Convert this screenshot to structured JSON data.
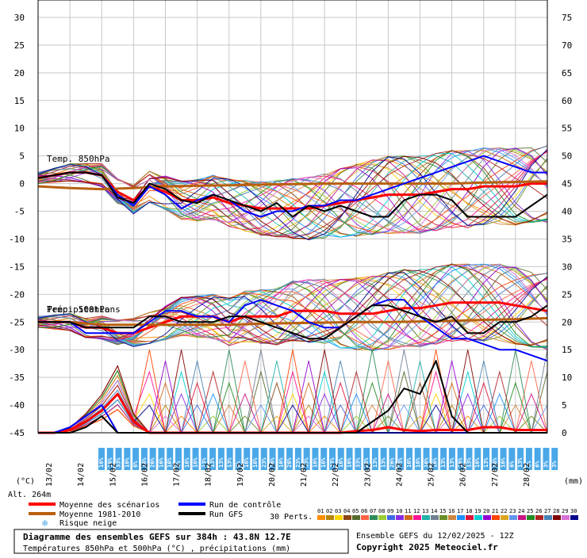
{
  "chart_data": {
    "type": "line",
    "title": "Diagramme des ensembles GEFS sur 384h : 43.8N 12.7E",
    "subtitle": "Températures 850hPa et 500hPa (°C) , précipitations (mm)",
    "run_info": "Ensemble GEFS du 12/02/2025 - 12Z",
    "copyright": "Copyright 2025 Meteociel.fr",
    "altitude_label": "Alt. 264m",
    "left_unit": "(°C)",
    "right_unit": "(mm)",
    "left_ticks": [
      30,
      25,
      20,
      15,
      10,
      5,
      0,
      -5,
      -10,
      -15,
      -20,
      -25,
      -30,
      -35,
      -40,
      -45
    ],
    "right_ticks": [
      75,
      70,
      65,
      60,
      55,
      50,
      45,
      40,
      35,
      30,
      25,
      20,
      15,
      10,
      5,
      0
    ],
    "ylim_temp": [
      -45,
      30
    ],
    "ylim_precip_mm": [
      0,
      75
    ],
    "x_dates": [
      "13/02",
      "14/02",
      "15/02",
      "16/02",
      "17/02",
      "18/02",
      "19/02",
      "20/02",
      "21/02",
      "22/02",
      "23/02",
      "24/02",
      "25/02",
      "26/02",
      "27/02",
      "28/02"
    ],
    "x_range_days": [
      0,
      16
    ],
    "panel_labels": {
      "t850": "Temp. 850hPa",
      "t500": "Temp. 500hPa",
      "precip": "Précipitations"
    },
    "legend": {
      "mean": "Moyenne des scénarios",
      "clim": "Moyenne 1981-2010",
      "snow": "Risque neige",
      "control": "Run de contrôle",
      "gfs": "Run GFS",
      "perts_label": "30 Perts."
    },
    "member_labels": [
      "01",
      "02",
      "03",
      "04",
      "05",
      "06",
      "07",
      "08",
      "09",
      "10",
      "11",
      "12",
      "13",
      "14",
      "15",
      "16",
      "17",
      "18",
      "19",
      "20",
      "21",
      "22",
      "23",
      "24",
      "25",
      "26",
      "27",
      "28",
      "29",
      "30"
    ],
    "member_colors": [
      "#ff8c00",
      "#b8860b",
      "#ffd700",
      "#8b4513",
      "#556b2f",
      "#ff6347",
      "#2e8b57",
      "#9acd32",
      "#4169e1",
      "#8a2be2",
      "#d2691e",
      "#ff1493",
      "#20b2aa",
      "#708090",
      "#6b8e23",
      "#cd853f",
      "#1e90ff",
      "#dc143c",
      "#00ced1",
      "#9400d3",
      "#ff4500",
      "#daa520",
      "#6495ed",
      "#c71585",
      "#228b22",
      "#b22222",
      "#4682b4",
      "#800000",
      "#da70d6",
      "#00008b"
    ],
    "colors": {
      "mean": "#ff0000",
      "clim": "#b8600f",
      "control": "#0000ff",
      "gfs": "#000000",
      "snow": "#4aa8e8"
    },
    "snow_risk_labels": [
      "16%",
      "16%",
      "33%",
      "16%",
      "6%",
      "16%",
      "26%",
      "16%",
      "16%",
      "6%",
      "16%",
      "16%",
      "13%",
      "13%",
      "13%",
      "13%",
      "6%",
      "16%",
      "16%",
      "23%",
      "16%",
      "16%",
      "26%",
      "23%",
      "33%",
      "16%",
      "16%",
      "23%",
      "16%",
      "16%",
      "33%",
      "26%",
      "13%",
      "13%",
      "26%",
      "33%",
      "16%",
      "16%",
      "16%",
      "16%",
      "13%",
      "13%",
      "16%",
      "13%",
      "16%",
      "13%",
      "16%",
      "16%",
      "6%",
      "13%",
      "6%",
      "6%",
      "3%",
      "3%"
    ],
    "series": [
      {
        "name": "Moyenne des scénarios",
        "panel": "t850",
        "x": [
          0,
          0.5,
          1,
          1.5,
          2,
          2.5,
          3,
          3.5,
          4,
          4.5,
          5,
          5.5,
          6,
          6.5,
          7,
          7.5,
          8,
          8.5,
          9,
          9.5,
          10,
          10.5,
          11,
          11.5,
          12,
          12.5,
          13,
          13.5,
          14,
          14.5,
          15,
          15.5,
          16
        ],
        "values": [
          1,
          1.5,
          2,
          2,
          1.5,
          -1.5,
          -3,
          -0.5,
          -1.5,
          -3,
          -3,
          -2.5,
          -3.5,
          -4,
          -4.5,
          -4.5,
          -4.5,
          -4.5,
          -4,
          -3.5,
          -3,
          -2.5,
          -2,
          -2,
          -2,
          -1.5,
          -1,
          -1,
          -0.5,
          -0.5,
          -0.5,
          0,
          0
        ]
      },
      {
        "name": "Moyenne 1981-2010",
        "panel": "t850",
        "x": [
          0,
          1,
          2,
          3,
          4,
          5,
          6,
          7,
          8,
          9,
          10,
          11,
          12,
          13,
          14,
          15,
          16
        ],
        "values": [
          -0.5,
          -0.8,
          -1,
          -0.8,
          -0.5,
          -0.4,
          -0.3,
          -0.2,
          -0.1,
          0,
          0,
          0,
          0,
          0,
          0.2,
          0.3,
          0.4
        ]
      },
      {
        "name": "Run de contrôle",
        "panel": "t850",
        "x": [
          0,
          0.5,
          1,
          1.5,
          2,
          2.5,
          3,
          3.5,
          4,
          4.5,
          5,
          5.5,
          6,
          6.5,
          7,
          7.5,
          8,
          8.5,
          9,
          9.5,
          10,
          10.5,
          11,
          11.5,
          12,
          12.5,
          13,
          13.5,
          14,
          14.5,
          15,
          15.5,
          16
        ],
        "values": [
          1,
          1.5,
          2,
          2,
          1.5,
          -2,
          -4,
          -0.5,
          -2,
          -4.5,
          -3,
          -2,
          -3,
          -5,
          -6,
          -5,
          -5,
          -4,
          -4,
          -3,
          -3,
          -2,
          -1,
          0,
          1,
          2,
          3,
          4,
          5,
          4,
          3,
          2,
          2
        ]
      },
      {
        "name": "Run GFS",
        "panel": "t850",
        "x": [
          0,
          0.5,
          1,
          1.5,
          2,
          2.5,
          3,
          3.5,
          4,
          4.5,
          5,
          5.5,
          6,
          6.5,
          7,
          7.5,
          8,
          8.5,
          9,
          9.5,
          10,
          10.5,
          11,
          11.5,
          12,
          12.5,
          13,
          13.5,
          14,
          14.5,
          15,
          15.5,
          16
        ],
        "values": [
          1,
          1.5,
          2,
          2,
          1.5,
          -2.5,
          -3.5,
          0,
          -1,
          -3,
          -3.5,
          -2,
          -3,
          -4,
          -5,
          -3.5,
          -6,
          -4,
          -5,
          -4,
          -5,
          -6,
          -6,
          -3,
          -2,
          -2,
          -3,
          -6,
          -6,
          -6,
          -6,
          -4,
          -2
        ]
      },
      {
        "name": "Moyenne des scénarios",
        "panel": "t500",
        "x": [
          0,
          0.5,
          1,
          1.5,
          2,
          2.5,
          3,
          3.5,
          4,
          4.5,
          5,
          5.5,
          6,
          6.5,
          7,
          7.5,
          8,
          8.5,
          9,
          9.5,
          10,
          10.5,
          11,
          11.5,
          12,
          12.5,
          13,
          13.5,
          14,
          14.5,
          15,
          15.5,
          16
        ],
        "values": [
          -25,
          -25,
          -25,
          -26,
          -26,
          -27,
          -27,
          -26,
          -25,
          -24,
          -24,
          -24,
          -25,
          -24,
          -24,
          -24,
          -23,
          -23,
          -23,
          -23.5,
          -23.5,
          -23.5,
          -23,
          -22.5,
          -22.5,
          -22,
          -21.5,
          -21.5,
          -21.5,
          -21.5,
          -22,
          -22.5,
          -23
        ]
      },
      {
        "name": "Moyenne 1981-2010",
        "panel": "t500",
        "x": [
          0,
          1,
          2,
          3,
          4,
          5,
          6,
          7,
          8,
          9,
          10,
          11,
          12,
          13,
          14,
          15,
          16
        ],
        "values": [
          -25,
          -25,
          -25.5,
          -25.5,
          -25.5,
          -25.5,
          -25.5,
          -25.3,
          -25.2,
          -25.1,
          -25,
          -25,
          -24.9,
          -24.8,
          -24.6,
          -24.5,
          -24.3
        ]
      },
      {
        "name": "Run de contrôle",
        "panel": "t500",
        "x": [
          0,
          0.5,
          1,
          1.5,
          2,
          2.5,
          3,
          3.5,
          4,
          4.5,
          5,
          5.5,
          6,
          6.5,
          7,
          7.5,
          8,
          8.5,
          9,
          9.5,
          10,
          10.5,
          11,
          11.5,
          12,
          12.5,
          13,
          13.5,
          14,
          14.5,
          15,
          15.5,
          16
        ],
        "values": [
          -25,
          -25,
          -25,
          -27,
          -27,
          -27,
          -27,
          -25,
          -23,
          -23,
          -24,
          -24,
          -25,
          -22,
          -21,
          -22,
          -23,
          -25,
          -26,
          -26,
          -24,
          -22,
          -21,
          -21,
          -24,
          -26,
          -28,
          -28,
          -29,
          -30,
          -30,
          -31,
          -32
        ]
      },
      {
        "name": "Run GFS",
        "panel": "t500",
        "x": [
          0,
          0.5,
          1,
          1.5,
          2,
          2.5,
          3,
          3.5,
          4,
          4.5,
          5,
          5.5,
          6,
          6.5,
          7,
          7.5,
          8,
          8.5,
          9,
          9.5,
          10,
          10.5,
          11,
          11.5,
          12,
          12.5,
          13,
          13.5,
          14,
          14.5,
          15,
          15.5,
          16
        ],
        "values": [
          -25,
          -25,
          -25,
          -26,
          -26,
          -26,
          -26,
          -24,
          -24,
          -25,
          -25,
          -25,
          -24,
          -24,
          -25,
          -26,
          -27,
          -28,
          -28,
          -26,
          -24,
          -22,
          -22,
          -23,
          -24,
          -25,
          -24,
          -27,
          -27,
          -25,
          -25,
          -24,
          -22
        ]
      },
      {
        "name": "Moyenne des scénarios",
        "panel": "precip",
        "x": [
          0,
          0.5,
          1,
          1.5,
          2,
          2.5,
          3,
          3.5,
          4,
          4.5,
          5,
          5.5,
          6,
          6.5,
          7,
          7.5,
          8,
          8.5,
          9,
          9.5,
          10,
          10.5,
          11,
          11.5,
          12,
          12.5,
          13,
          13.5,
          14,
          14.5,
          15,
          15.5,
          16
        ],
        "values": [
          0,
          0,
          0.5,
          2,
          4,
          7,
          2,
          0,
          0,
          0,
          0,
          0,
          0,
          0,
          0,
          0,
          0,
          0,
          0,
          0,
          0.3,
          0.5,
          1,
          0.5,
          0.3,
          0.5,
          0.5,
          0.5,
          1,
          1,
          0.5,
          0.5,
          0.5
        ]
      },
      {
        "name": "Run de contrôle",
        "panel": "precip",
        "x": [
          0,
          0.5,
          1,
          1.5,
          2,
          2.5,
          3,
          3.5,
          4,
          4.5,
          5,
          5.5,
          6,
          6.5,
          7,
          7.5,
          8,
          8.5,
          9,
          9.5,
          10,
          10.5,
          11,
          11.5,
          12,
          12.5,
          13,
          13.5,
          14,
          14.5,
          15,
          15.5,
          16
        ],
        "values": [
          0,
          0,
          1,
          3,
          5,
          0,
          0,
          0,
          0,
          0,
          0,
          0,
          0,
          0,
          0,
          0,
          0,
          0,
          0,
          0,
          0,
          0,
          0,
          0,
          0,
          0,
          0,
          0,
          0,
          0,
          0,
          0,
          0
        ]
      },
      {
        "name": "Run GFS",
        "panel": "precip",
        "x": [
          0,
          0.5,
          1,
          1.5,
          2,
          2.5,
          3,
          3.5,
          4,
          4.5,
          5,
          5.5,
          6,
          6.5,
          7,
          7.5,
          8,
          8.5,
          9,
          9.5,
          10,
          10.5,
          11,
          11.5,
          12,
          12.5,
          13,
          13.5,
          14,
          14.5,
          15,
          15.5,
          16
        ],
        "values": [
          0,
          0,
          0,
          1,
          3,
          0,
          0,
          0,
          0,
          0,
          0,
          0,
          0,
          0,
          0,
          0,
          0,
          0,
          0,
          0,
          0,
          2,
          4,
          8,
          7,
          13,
          3,
          0,
          0,
          0,
          0,
          0,
          0
        ]
      }
    ]
  }
}
